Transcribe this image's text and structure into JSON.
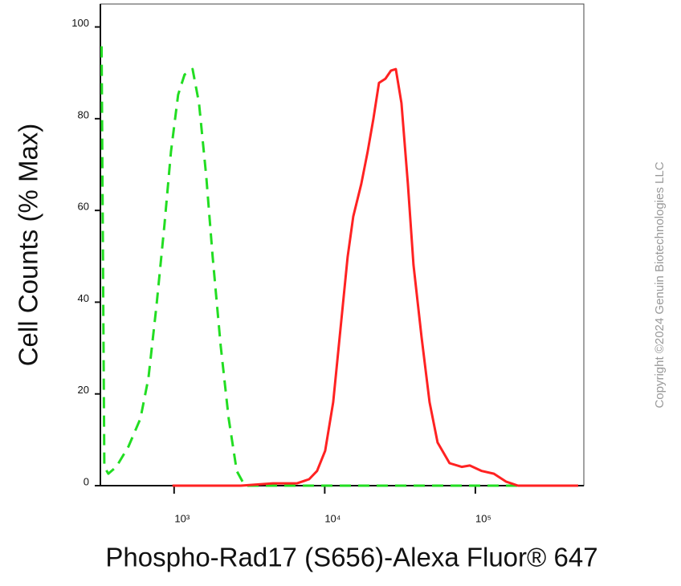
{
  "chart_data": {
    "type": "line",
    "xlabel": "Phospho-Rad17 (S656)-Alexa Fluor® 647",
    "ylabel": "Cell Counts (% Max)",
    "copyright": "Copyright ©2024 Genuin Biotechnologies LLC",
    "xscale": "log",
    "xlim": [
      324,
      525000
    ],
    "ylim": [
      0,
      105
    ],
    "xticks": [
      {
        "value": 1000,
        "label": "10³"
      },
      {
        "value": 10000,
        "label": "10⁴"
      },
      {
        "value": 100000,
        "label": "10⁵"
      }
    ],
    "yticks": [
      0,
      20,
      40,
      60,
      80,
      100
    ],
    "series": [
      {
        "color": "#22dd22",
        "dash": true,
        "x": [
          330,
          344,
          366,
          413,
          497,
          597,
          675,
          764,
          863,
          953,
          1063,
          1173,
          1327,
          1463,
          1634,
          1803,
          2038,
          2305,
          2606,
          2944,
          3538,
          482000
        ],
        "values": [
          95.8,
          4.1,
          2.6,
          4.1,
          8.5,
          14.6,
          23.4,
          39.3,
          56.9,
          72.8,
          85.2,
          89.6,
          90.8,
          83.4,
          67.5,
          49.9,
          30.5,
          14.6,
          3.2,
          0,
          0,
          0
        ]
      },
      {
        "color": "#ff2222",
        "dash": false,
        "x": [
          975,
          1694,
          2773,
          4531,
          6549,
          7870,
          8896,
          10060,
          11380,
          12860,
          14190,
          15460,
          17490,
          19280,
          21020,
          22910,
          25290,
          27550,
          29660,
          32310,
          35650,
          38840,
          43950,
          49660,
          56110,
          67450,
          81090,
          91830,
          110300,
          132700,
          159600,
          191900,
          482000
        ],
        "values": [
          0,
          0,
          0,
          0.5,
          0.5,
          1.4,
          3.2,
          7.6,
          18.2,
          35.8,
          49.9,
          58.7,
          65.8,
          72.8,
          79.9,
          87.8,
          88.7,
          90.5,
          90.8,
          83.4,
          65.8,
          48.1,
          32.3,
          18.2,
          9.4,
          4.9,
          4.1,
          4.4,
          3.2,
          2.6,
          0.9,
          0,
          0
        ]
      }
    ]
  }
}
